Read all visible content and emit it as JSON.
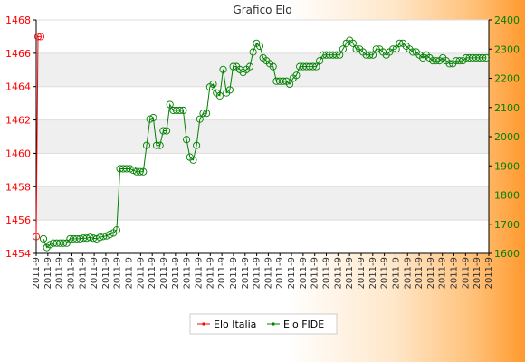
{
  "chart_data": {
    "type": "line",
    "title": "Grafico Elo",
    "left_axis": {
      "ylim": [
        1454,
        1468
      ],
      "ticks": [
        1454,
        1456,
        1458,
        1460,
        1462,
        1464,
        1466,
        1468
      ],
      "color": "#ff0000"
    },
    "right_axis": {
      "ylim": [
        1600,
        2400
      ],
      "ticks": [
        1600,
        1700,
        1800,
        1900,
        2000,
        2100,
        2200,
        2300,
        2400
      ],
      "color": "#008000"
    },
    "x_tick_label": "2011-9",
    "x_tick_count": 40,
    "grid": true,
    "legend_position": "bottom",
    "series": [
      {
        "name": "Elo Italia",
        "axis": "left",
        "color": "#ff0000",
        "values": [
          1455,
          1467,
          1467
        ]
      },
      {
        "name": "Elo FIDE",
        "axis": "right",
        "color": "#008000",
        "values": [
          1650,
          1620,
          1630,
          1635,
          1635,
          1635,
          1635,
          1635,
          1650,
          1650,
          1650,
          1650,
          1652,
          1652,
          1655,
          1652,
          1650,
          1655,
          1658,
          1660,
          1665,
          1670,
          1680,
          1890,
          1890,
          1890,
          1890,
          1885,
          1880,
          1880,
          1880,
          1970,
          2060,
          2065,
          1970,
          1970,
          2020,
          2020,
          2110,
          2090,
          2090,
          2090,
          2090,
          1990,
          1930,
          1920,
          1970,
          2060,
          2080,
          2080,
          2170,
          2180,
          2150,
          2140,
          2230,
          2150,
          2160,
          2240,
          2240,
          2230,
          2220,
          2230,
          2240,
          2290,
          2320,
          2310,
          2270,
          2260,
          2250,
          2240,
          2190,
          2190,
          2190,
          2190,
          2180,
          2200,
          2210,
          2240,
          2240,
          2240,
          2240,
          2240,
          2240,
          2260,
          2280,
          2280,
          2280,
          2280,
          2280,
          2280,
          2300,
          2320,
          2330,
          2320,
          2300,
          2300,
          2290,
          2280,
          2280,
          2280,
          2300,
          2300,
          2290,
          2280,
          2290,
          2300,
          2300,
          2320,
          2320,
          2310,
          2300,
          2290,
          2290,
          2280,
          2270,
          2280,
          2270,
          2260,
          2260,
          2260,
          2270,
          2260,
          2250,
          2250,
          2260,
          2260,
          2260,
          2270,
          2270,
          2270,
          2270,
          2270,
          2270,
          2270
        ]
      }
    ]
  }
}
